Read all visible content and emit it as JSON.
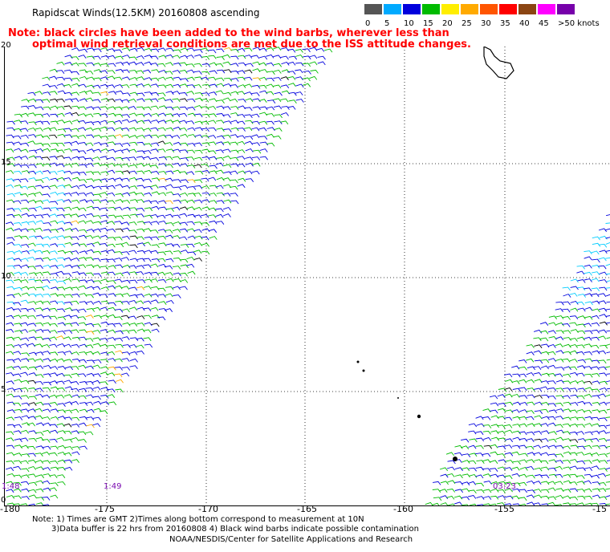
{
  "title": "Rapidscat Winds(12.5KM) 20160808 ascending",
  "note_line1": "Note: black circles have been added to the wind barbs, wherever less than",
  "note_line2": "optimal wind retrieval conditions are met due to the ISS attitude changes.",
  "colorbar": {
    "labels": [
      "0",
      "5",
      "10",
      "15",
      "20",
      "25",
      "30",
      "35",
      "40",
      "45",
      ">50 knots"
    ],
    "colors": [
      "#555555",
      "#00aaff",
      "#0000dd",
      "#00bb00",
      "#ffee00",
      "#ffaa00",
      "#ff5500",
      "#ff0000",
      "#8b4513",
      "#ff00ff",
      "#7700aa"
    ]
  },
  "y_labels": [
    "20",
    "15",
    "10",
    "5",
    "0"
  ],
  "x_labels": [
    "-180",
    "-175",
    "-170",
    "-165",
    "-160",
    "-155",
    "-15"
  ],
  "time_labels": [
    "1:48",
    "1:49",
    "03:23"
  ],
  "footer": {
    "line1": "Note: 1) Times are GMT 2)Times along bottom correspond to measurement at 10N",
    "line2": "3)Data buffer is 22 hrs from 20160808 4) Black wind barbs indicate possible contamination",
    "line3": "NOAA/NESDIS/Center for Satellite Applications and Research"
  }
}
